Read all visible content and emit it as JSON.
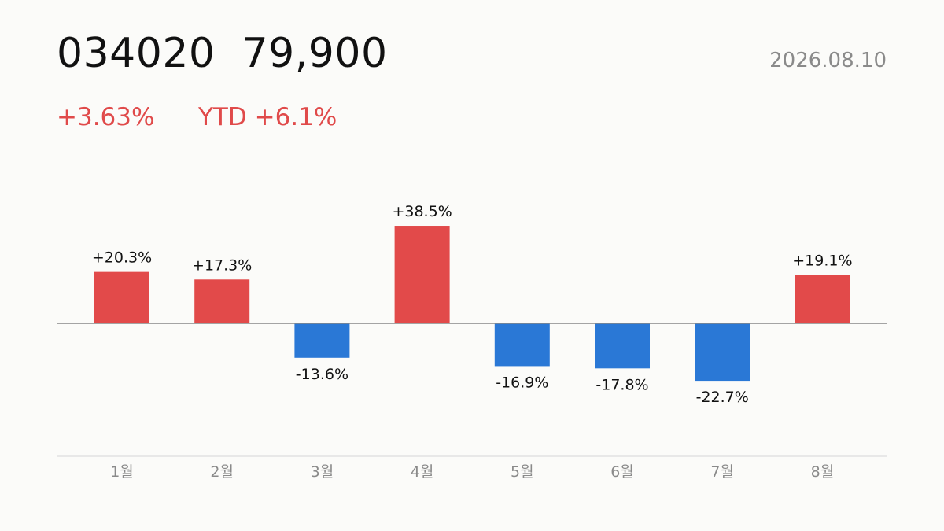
{
  "header": {
    "ticker": "034020",
    "price": "79,900",
    "date": "2026.08.10",
    "change": "+3.63%",
    "ytd": "YTD +6.1%"
  },
  "colors": {
    "positive": "#e24a4a",
    "negative": "#2a78d6",
    "baseline": "#888888",
    "axis": "#e2e2e2",
    "label": "#111111",
    "tick": "#8a8a8a"
  },
  "chart_data": {
    "type": "bar",
    "categories": [
      "1월",
      "2월",
      "3월",
      "4월",
      "5월",
      "6월",
      "7월",
      "8월"
    ],
    "values": [
      20.3,
      17.3,
      -13.6,
      38.5,
      -16.9,
      -17.8,
      -22.7,
      19.1
    ],
    "labels": [
      "+20.3%",
      "+17.3%",
      "-13.6%",
      "+38.5%",
      "-16.9%",
      "-17.8%",
      "-22.7%",
      "+19.1%"
    ],
    "ylabel": "",
    "xlabel": "",
    "grid": false,
    "legend": "none"
  }
}
